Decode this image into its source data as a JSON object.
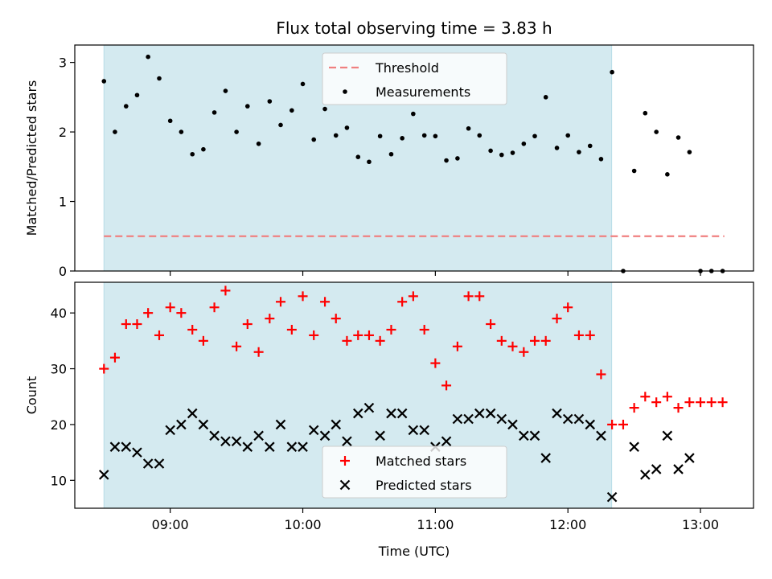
{
  "chart_data": {
    "type": "scatter",
    "title": "Flux total observing time = 3.83 h",
    "xlabel": "Time (UTC)",
    "x_tick_labels": [
      "09:00",
      "10:00",
      "11:00",
      "12:00",
      "13:00"
    ],
    "x_ticks_hours": [
      9,
      10,
      11,
      12,
      13
    ],
    "xlim_hours": [
      8.28,
      13.4
    ],
    "shaded_span_hours": [
      8.5,
      12.33
    ],
    "shade_color": "#d4eaf0",
    "panels": [
      {
        "ylabel": "Matched/Predicted stars",
        "ylim": [
          0,
          3.25
        ],
        "y_ticks": [
          0,
          1,
          2,
          3
        ],
        "legend": [
          "Threshold",
          "Measurements"
        ],
        "threshold": {
          "name": "Threshold",
          "y": 0.5,
          "x_range_hours": [
            8.5,
            13.18
          ],
          "color": "#f08080"
        },
        "series": [
          {
            "name": "Measurements",
            "color": "#000000",
            "marker": "dot",
            "x": [
              8.5,
              8.583,
              8.667,
              8.75,
              8.833,
              8.917,
              9.0,
              9.083,
              9.167,
              9.25,
              9.333,
              9.417,
              9.5,
              9.583,
              9.667,
              9.75,
              9.833,
              9.917,
              10.0,
              10.083,
              10.167,
              10.25,
              10.333,
              10.417,
              10.5,
              10.583,
              10.667,
              10.75,
              10.833,
              10.917,
              11.0,
              11.083,
              11.167,
              11.25,
              11.333,
              11.417,
              11.5,
              11.583,
              11.667,
              11.75,
              11.833,
              11.917,
              12.0,
              12.083,
              12.167,
              12.25,
              12.333,
              12.417,
              12.5,
              12.583,
              12.667,
              12.75,
              12.833,
              12.917,
              13.0,
              13.083,
              13.167
            ],
            "y": [
              2.73,
              2.0,
              2.37,
              2.53,
              3.08,
              2.77,
              2.16,
              2.0,
              1.68,
              1.75,
              2.28,
              2.59,
              2.0,
              2.37,
              1.83,
              2.44,
              2.1,
              2.31,
              2.69,
              1.89,
              2.33,
              1.95,
              2.06,
              1.64,
              1.57,
              1.94,
              1.68,
              1.91,
              2.26,
              1.95,
              1.94,
              1.59,
              1.62,
              2.05,
              1.95,
              1.73,
              1.67,
              1.7,
              1.83,
              1.94,
              2.5,
              1.77,
              1.95,
              1.71,
              1.8,
              1.61,
              2.86,
              0.0,
              1.44,
              2.27,
              2.0,
              1.39,
              1.92,
              1.71,
              0.0,
              0.0,
              0.0
            ]
          }
        ]
      },
      {
        "ylabel": "Count",
        "ylim": [
          5,
          45.5
        ],
        "y_ticks": [
          10,
          20,
          30,
          40
        ],
        "legend": [
          "Matched stars",
          "Predicted stars"
        ],
        "series": [
          {
            "name": "Matched stars",
            "color": "#ff0000",
            "marker": "plus",
            "x": [
              8.5,
              8.583,
              8.667,
              8.75,
              8.833,
              8.917,
              9.0,
              9.083,
              9.167,
              9.25,
              9.333,
              9.417,
              9.5,
              9.583,
              9.667,
              9.75,
              9.833,
              9.917,
              10.0,
              10.083,
              10.167,
              10.25,
              10.333,
              10.417,
              10.5,
              10.583,
              10.667,
              10.75,
              10.833,
              10.917,
              11.0,
              11.083,
              11.167,
              11.25,
              11.333,
              11.417,
              11.5,
              11.583,
              11.667,
              11.75,
              11.833,
              11.917,
              12.0,
              12.083,
              12.167,
              12.25,
              12.333,
              12.417,
              12.5,
              12.583,
              12.667,
              12.75,
              12.833,
              12.917,
              13.0,
              13.083,
              13.167
            ],
            "y": [
              30,
              32,
              38,
              38,
              40,
              36,
              41,
              40,
              37,
              35,
              41,
              44,
              34,
              38,
              33,
              39,
              42,
              37,
              43,
              36,
              42,
              39,
              35,
              36,
              36,
              35,
              37,
              42,
              43,
              37,
              31,
              27,
              34,
              43,
              43,
              38,
              35,
              34,
              33,
              35,
              35,
              39,
              41,
              36,
              36,
              29,
              20,
              20,
              23,
              25,
              24,
              25,
              23,
              24,
              24,
              24,
              24
            ]
          },
          {
            "name": "Predicted stars",
            "color": "#000000",
            "marker": "x",
            "x": [
              8.5,
              8.583,
              8.667,
              8.75,
              8.833,
              8.917,
              9.0,
              9.083,
              9.167,
              9.25,
              9.333,
              9.417,
              9.5,
              9.583,
              9.667,
              9.75,
              9.833,
              9.917,
              10.0,
              10.083,
              10.167,
              10.25,
              10.333,
              10.417,
              10.5,
              10.583,
              10.667,
              10.75,
              10.833,
              10.917,
              11.0,
              11.083,
              11.167,
              11.25,
              11.333,
              11.417,
              11.5,
              11.583,
              11.667,
              11.75,
              11.833,
              11.917,
              12.0,
              12.083,
              12.167,
              12.25,
              12.333,
              12.5,
              12.583,
              12.667,
              12.75,
              12.833,
              12.917
            ],
            "y": [
              11,
              16,
              16,
              15,
              13,
              13,
              19,
              20,
              22,
              20,
              18,
              17,
              17,
              16,
              18,
              16,
              20,
              16,
              16,
              19,
              18,
              20,
              17,
              22,
              23,
              18,
              22,
              22,
              19,
              19,
              16,
              17,
              21,
              21,
              22,
              22,
              21,
              20,
              18,
              18,
              14,
              22,
              21,
              21,
              20,
              18,
              7,
              16,
              11,
              12,
              18,
              12,
              14
            ]
          }
        ]
      }
    ]
  }
}
